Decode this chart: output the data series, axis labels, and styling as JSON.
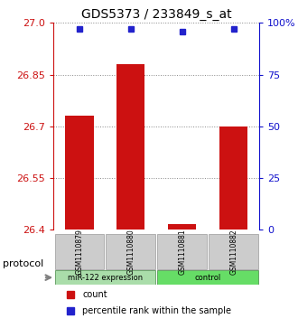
{
  "title": "GDS5373 / 233849_s_at",
  "samples": [
    "GSM1110879",
    "GSM1110880",
    "GSM1110881",
    "GSM1110882"
  ],
  "bar_values": [
    26.73,
    26.88,
    26.415,
    26.7
  ],
  "percentile_values": [
    97,
    97,
    96,
    97
  ],
  "ylim_left": [
    26.4,
    27.0
  ],
  "yticks_left": [
    26.4,
    26.55,
    26.7,
    26.85,
    27.0
  ],
  "ylim_right": [
    0,
    100
  ],
  "yticks_right": [
    0,
    25,
    50,
    75,
    100
  ],
  "bar_color": "#cc1111",
  "dot_color": "#2222cc",
  "groups": [
    {
      "label": "miR-122 expression",
      "samples": [
        0,
        1
      ],
      "color": "#aaddaa"
    },
    {
      "label": "control",
      "samples": [
        2,
        3
      ],
      "color": "#66dd66"
    }
  ],
  "protocol_label": "protocol",
  "legend_bar_label": "count",
  "legend_dot_label": "percentile rank within the sample",
  "grid_color": "#888888",
  "background_color": "#ffffff",
  "plot_bg_color": "#ffffff"
}
